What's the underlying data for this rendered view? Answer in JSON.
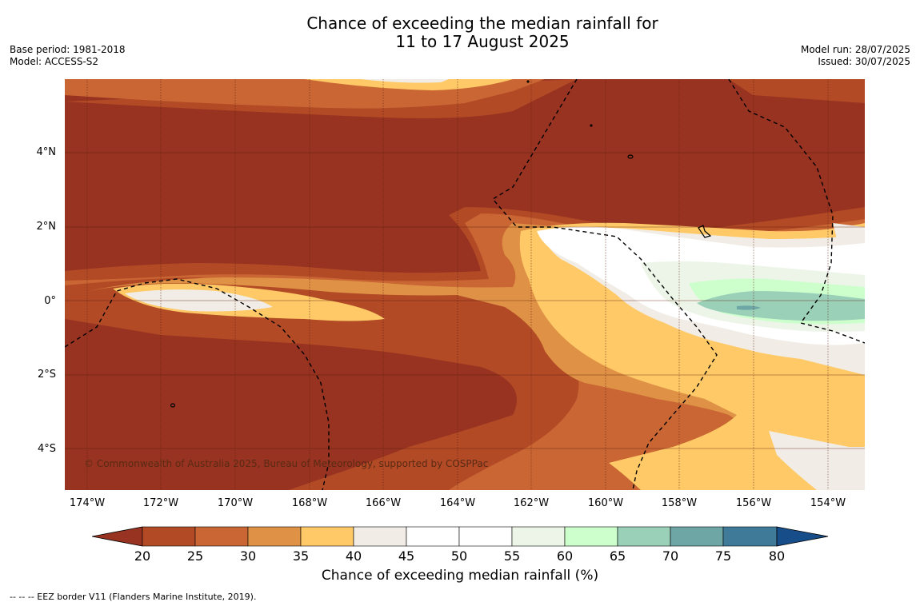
{
  "title_line1": "Chance of exceeding the median rainfall for",
  "title_line2": "11 to 17 August 2025",
  "base_period": "Base period: 1981-2018",
  "model": "Model: ACCESS-S2",
  "model_run": "Model run: 28/07/2025",
  "issued": "Issued: 30/07/2025",
  "lat_labels": [
    "4°N",
    "2°N",
    "0°",
    "2°S",
    "4°S"
  ],
  "lon_labels": [
    "174°W",
    "172°W",
    "170°W",
    "168°W",
    "166°W",
    "164°W",
    "162°W",
    "160°W",
    "158°W",
    "156°W",
    "154°W"
  ],
  "copyright": "© Commonwealth of Australia 2025, Bureau of Meteorology, supported by COSPPac",
  "colorbar": {
    "ticks": [
      "20",
      "25",
      "30",
      "35",
      "40",
      "45",
      "50",
      "55",
      "60",
      "65",
      "70",
      "75",
      "80"
    ],
    "colors": [
      "#973320",
      "#b24a26",
      "#c96634",
      "#df9245",
      "#fec966",
      "#f1ede6",
      "#ffffff",
      "#ffffff",
      "#ecf5e8",
      "#ccffcc",
      "#9bd0b8",
      "#6ea6a6",
      "#3f7a99",
      "#174d88"
    ],
    "label": "Chance of exceeding median rainfall (%)"
  },
  "legend_note": "-- -- -- EEZ border V11 (Flanders Marine Institute, 2019)."
}
